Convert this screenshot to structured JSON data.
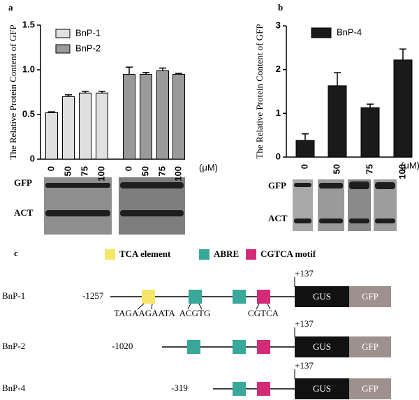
{
  "chart_data": [
    {
      "type": "bar",
      "label": "a",
      "ylabel": "The Relative Protein Content of GFP",
      "unit": "(μM)",
      "categories": [
        "0",
        "50",
        "75",
        "100"
      ],
      "series": [
        {
          "name": "BnP-1",
          "color": "#e0e0e0",
          "values": [
            0.52,
            0.7,
            0.74,
            0.74
          ],
          "errors": [
            0.01,
            0.02,
            0.02,
            0.02
          ]
        },
        {
          "name": "BnP-2",
          "color": "#9a9a9a",
          "values": [
            0.95,
            0.95,
            0.99,
            0.95
          ],
          "errors": [
            0.08,
            0.02,
            0.03,
            0.01
          ]
        }
      ],
      "ylim": [
        0,
        1.5
      ],
      "yticks": [
        0,
        0.5,
        {
          "value": 1,
          "label": "1.0"
        },
        1.5
      ],
      "blot_labels": [
        "GFP",
        "ACT"
      ]
    },
    {
      "type": "bar",
      "label": "b",
      "ylabel": "The Relative Protein Content of GFP",
      "unit": "(μM)",
      "categories": [
        "0",
        "50",
        "75",
        "100"
      ],
      "series": [
        {
          "name": "BnP-4",
          "color": "#1a1a1a",
          "values": [
            0.38,
            1.63,
            1.13,
            2.22
          ],
          "errors": [
            0.15,
            0.3,
            0.08,
            0.25
          ]
        }
      ],
      "ylim": [
        0,
        3
      ],
      "yticks": [
        0,
        1,
        2,
        3
      ],
      "blot_labels": [
        "GFP",
        "ACT"
      ]
    }
  ],
  "diagram": {
    "label": "c",
    "legend": [
      {
        "name": "TCA element",
        "color": "#f5e66a"
      },
      {
        "name": "ABRE",
        "color": "#3aa898"
      },
      {
        "name": "CGTCA motif",
        "color": "#d42b78"
      }
    ],
    "rows": [
      {
        "name": "BnP-1",
        "start": "-1257",
        "end": "+137"
      },
      {
        "name": "BnP-2",
        "start": "-1020",
        "end": "+137"
      },
      {
        "name": "BnP-4",
        "start": "-319",
        "end": "+137"
      }
    ],
    "reporters": [
      "GUS",
      "GFP"
    ],
    "sequences": [
      "TAGAAGAATA",
      "ACGTG",
      "CGTCA"
    ]
  }
}
